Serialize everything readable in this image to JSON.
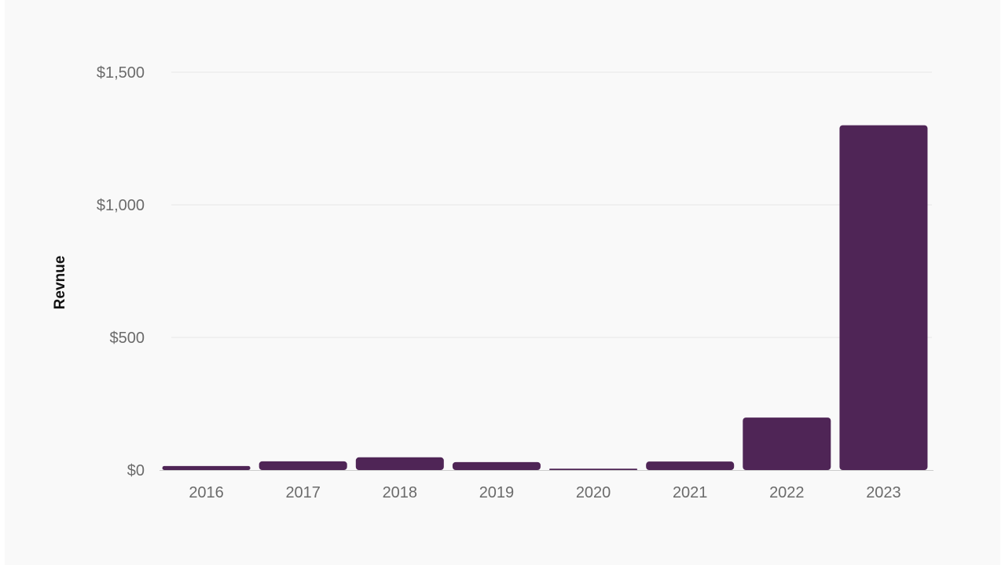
{
  "chart_data": {
    "type": "bar",
    "categories": [
      "2016",
      "2017",
      "2018",
      "2019",
      "2020",
      "2021",
      "2022",
      "2023"
    ],
    "values": [
      15,
      33,
      48,
      30,
      5,
      32,
      198,
      1300
    ],
    "xlabel": "",
    "ylabel": "Revnue",
    "ylim": [
      0,
      1500
    ],
    "yticks": [
      0,
      500,
      1000,
      1500
    ],
    "ytick_labels": [
      "$0",
      "$500",
      "$1,000",
      "$1,500"
    ],
    "grid": true,
    "legend": "none",
    "colors": {
      "bar": "#4f2556",
      "grid": "#e6e6e6",
      "baseline": "#cccccc",
      "background": "#f9f9f9"
    }
  }
}
